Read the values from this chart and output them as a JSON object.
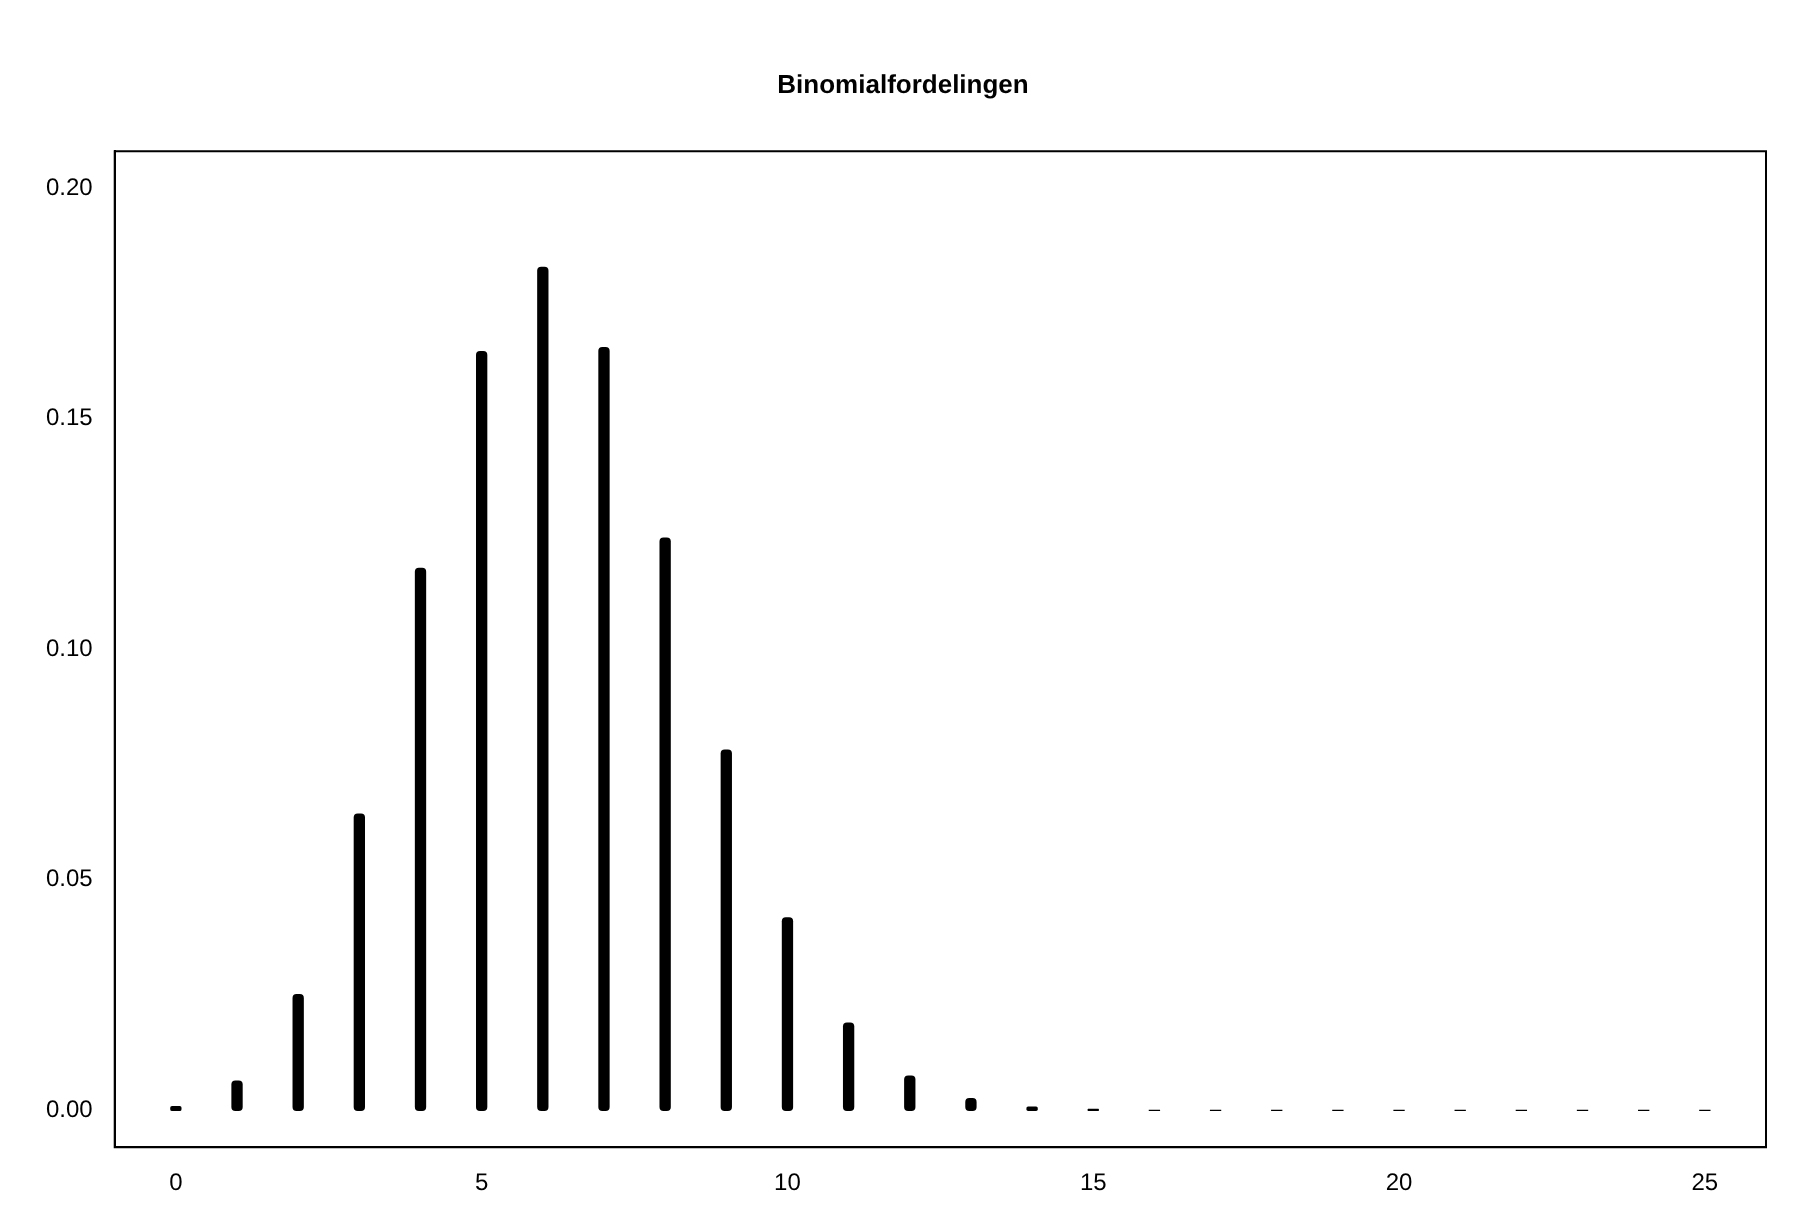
{
  "chart_data": {
    "type": "bar",
    "title": "Binomialfordelingen",
    "x": [
      0,
      1,
      2,
      3,
      4,
      5,
      6,
      7,
      8,
      9,
      10,
      11,
      12,
      13,
      14,
      15,
      16,
      17,
      18,
      19,
      20,
      21,
      22,
      23,
      24,
      25
    ],
    "values": [
      0.0008,
      0.0063,
      0.0251,
      0.0642,
      0.1175,
      0.1645,
      0.1828,
      0.1654,
      0.1241,
      0.0781,
      0.0417,
      0.0189,
      0.0074,
      0.0025,
      0.0007,
      0.0002,
      0,
      0,
      0,
      0,
      0,
      0,
      0,
      0,
      0,
      0
    ],
    "color": "#000000",
    "xlim": [
      -1,
      26
    ],
    "xticks": [
      0,
      5,
      10,
      15,
      20,
      25
    ],
    "ylim": [
      -0.008,
      0.208
    ],
    "yticks": [
      {
        "value": 0,
        "label": "0.00"
      },
      {
        "value": 0.05,
        "label": "0.05"
      },
      {
        "value": 0.1,
        "label": "0.10"
      },
      {
        "value": 0.15,
        "label": "0.15"
      },
      {
        "value": 0.2,
        "label": "0.20"
      }
    ],
    "grid": false,
    "legend": false
  }
}
